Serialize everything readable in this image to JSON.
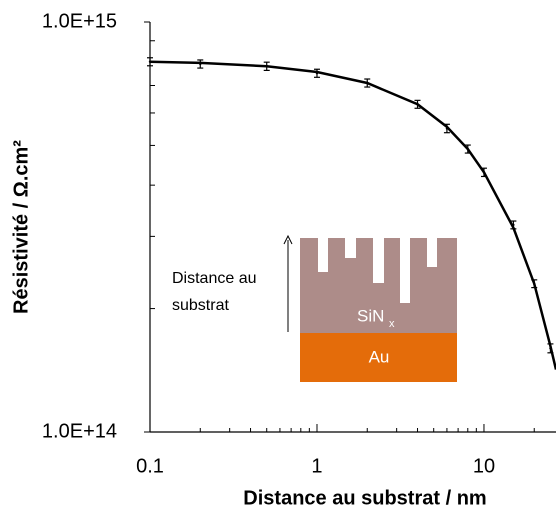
{
  "chart_data": {
    "type": "scatter",
    "x_label": "Distance au substrat / nm",
    "y_label": "Résistivité / Ω.cm²",
    "xscale": "log",
    "yscale": "log",
    "xlim": [
      0.1,
      27
    ],
    "ylim": [
      100000000000000.0,
      1000000000000000.0
    ],
    "xticks": [
      0.1,
      1,
      10
    ],
    "xminorticks": [
      0.2,
      0.3,
      0.4,
      0.5,
      0.6,
      0.7,
      0.8,
      0.9,
      2,
      3,
      4,
      5,
      6,
      7,
      8,
      9,
      20
    ],
    "yticks": [
      {
        "value": 100000000000000.0,
        "label": "1.0E+14"
      },
      {
        "value": 1000000000000000.0,
        "label": "1.0E+15"
      }
    ],
    "yminorticks": [
      200000000000000.0,
      300000000000000.0,
      400000000000000.0,
      500000000000000.0,
      600000000000000.0,
      700000000000000.0,
      800000000000000.0,
      900000000000000.0
    ],
    "series": [
      {
        "type": "scatter",
        "color": "#000000",
        "x": [
          0.1,
          0.2,
          0.5,
          1,
          2,
          4,
          6,
          8,
          10,
          15,
          20,
          25
        ],
        "values": [
          800000000000000.0,
          790000000000000.0,
          780000000000000.0,
          750000000000000.0,
          710000000000000.0,
          630000000000000.0,
          550000000000000.0,
          490000000000000.0,
          430000000000000.0,
          320000000000000.0,
          230000000000000.0,
          160000000000000.0
        ],
        "errors": [
          18000000000000.0,
          18000000000000.0,
          18000000000000.0,
          17000000000000.0,
          16000000000000.0,
          14000000000000.0,
          13000000000000.0,
          11000000000000.0,
          10000000000000.0,
          7000000000000.0,
          5000000000000.0,
          4000000000000.0
        ]
      },
      {
        "type": "line",
        "color": "#000000",
        "x": [
          0.1,
          0.2,
          0.5,
          1,
          2,
          4,
          6,
          8,
          10,
          15,
          20,
          25,
          27
        ],
        "values": [
          800000000000000.0,
          795000000000000.0,
          780000000000000.0,
          755000000000000.0,
          710000000000000.0,
          630000000000000.0,
          555000000000000.0,
          490000000000000.0,
          430000000000000.0,
          315000000000000.0,
          230000000000000.0,
          162000000000000.0,
          142000000000000.0
        ]
      }
    ],
    "inset": {
      "axis_lines": [
        "Distance au",
        "substrat"
      ],
      "layer_top": "SiN",
      "layer_top_sub": "x",
      "layer_bottom": "Au"
    }
  }
}
